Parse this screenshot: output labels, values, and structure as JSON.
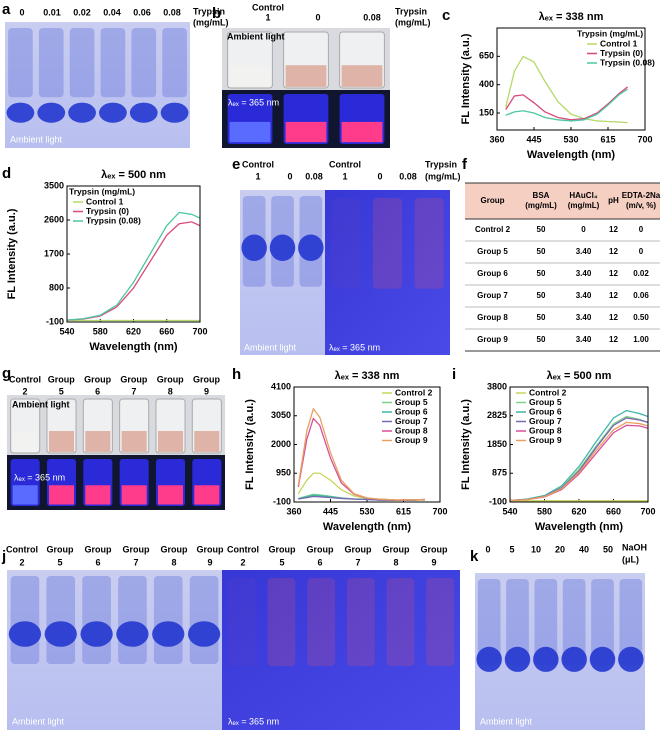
{
  "panels": {
    "a": {
      "label": "a",
      "lanes": [
        "0",
        "0.01",
        "0.02",
        "0.04",
        "0.06",
        "0.08"
      ],
      "unit": [
        "Trypsin",
        "(mg/mL)"
      ],
      "light": "Ambient light"
    },
    "b": {
      "label": "b",
      "vials": [
        [
          "Control",
          "1"
        ],
        [
          "0"
        ],
        [
          "0.08"
        ]
      ],
      "unit": [
        "Trypsin",
        "(mg/mL)"
      ],
      "light": "Ambient light",
      "uv": "λₑₓ = 365 nm"
    },
    "e": {
      "label": "e",
      "lanes": [
        [
          "Control",
          "1"
        ],
        [
          "0"
        ],
        [
          "0.08"
        ],
        [
          "Control",
          "1"
        ],
        [
          "0"
        ],
        [
          "0.08"
        ]
      ],
      "unit": [
        "Trypsin",
        "(mg/mL)"
      ],
      "light": "Ambient light",
      "uv": "λₑₓ = 365 nm"
    },
    "f": {
      "label": "f"
    },
    "g": {
      "label": "g",
      "vials": [
        [
          "Control",
          "2"
        ],
        [
          "Group",
          "5"
        ],
        [
          "Group",
          "6"
        ],
        [
          "Group",
          "7"
        ],
        [
          "Group",
          "8"
        ],
        [
          "Group",
          "9"
        ]
      ],
      "light": "Ambient light",
      "uv": "λₑₓ = 365 nm"
    },
    "j": {
      "label": "j",
      "lanes": [
        [
          "Control",
          "2"
        ],
        [
          "Group",
          "5"
        ],
        [
          "Group",
          "6"
        ],
        [
          "Group",
          "7"
        ],
        [
          "Group",
          "8"
        ],
        [
          "Group",
          "9"
        ],
        [
          "Control",
          "2"
        ],
        [
          "Group",
          "5"
        ],
        [
          "Group",
          "6"
        ],
        [
          "Group",
          "7"
        ],
        [
          "Group",
          "8"
        ],
        [
          "Group",
          "9"
        ]
      ],
      "light": "Ambient light",
      "uv": "λₑₓ = 365 nm"
    },
    "k": {
      "label": "k",
      "lanes": [
        "0",
        "5",
        "10",
        "20",
        "40",
        "50"
      ],
      "unit": [
        "NaOH",
        "(μL)"
      ],
      "light": "Ambient light"
    }
  },
  "table": {
    "header": [
      "Group",
      "BSA (mg/mL)",
      "HAuCl₄ (mg/mL)",
      "pH",
      "EDTA-2Na (m/v, %)"
    ],
    "rows": [
      [
        "Control 2",
        "50",
        "0",
        "12",
        "0"
      ],
      [
        "Group 5",
        "50",
        "3.40",
        "12",
        "0"
      ],
      [
        "Group 6",
        "50",
        "3.40",
        "12",
        "0.02"
      ],
      [
        "Group 7",
        "50",
        "3.40",
        "12",
        "0.06"
      ],
      [
        "Group 8",
        "50",
        "3.40",
        "12",
        "0.50"
      ],
      [
        "Group 9",
        "50",
        "3.40",
        "12",
        "1.00"
      ]
    ]
  },
  "chart_data": [
    {
      "type": "line",
      "panel_label": "c",
      "title": "λₑₓ = 338 nm",
      "x_label": "Wavelength (nm)",
      "y_label": "FL Intensity (a.u.)",
      "xlim": [
        360,
        700
      ],
      "xticks": [
        360,
        445,
        530,
        615,
        700
      ],
      "ylim": [
        0,
        900
      ],
      "yticks": [
        150,
        400,
        650
      ],
      "legend_title": "Trypsin (mg/mL)",
      "legend": "upper right",
      "x": [
        380,
        400,
        420,
        445,
        470,
        500,
        530,
        560,
        590,
        615,
        640,
        660
      ],
      "series": [
        {
          "name": "Control 1",
          "color": "#b5d96a",
          "values": [
            200,
            520,
            650,
            600,
            430,
            250,
            140,
            100,
            80,
            75,
            70,
            65
          ]
        },
        {
          "name": "Trypsin (0)",
          "color": "#d9497a",
          "values": [
            180,
            300,
            310,
            240,
            160,
            110,
            90,
            100,
            150,
            230,
            320,
            380
          ]
        },
        {
          "name": "Trypsin (0.08)",
          "color": "#4cc7a4",
          "values": [
            130,
            160,
            170,
            150,
            110,
            90,
            80,
            90,
            140,
            220,
            310,
            360
          ]
        }
      ]
    },
    {
      "type": "line",
      "panel_label": "d",
      "title": "λₑₓ = 500 nm",
      "x_label": "Wavelength (nm)",
      "y_label": "FL Intensity (a.u.)",
      "xlim": [
        540,
        700
      ],
      "xticks": [
        540,
        580,
        620,
        660,
        700
      ],
      "ylim": [
        -100,
        3500
      ],
      "yticks": [
        -100,
        800,
        1700,
        2600,
        3500
      ],
      "legend_title": "Trypsin (mg/mL)",
      "legend": "upper left",
      "x": [
        540,
        560,
        580,
        600,
        620,
        640,
        660,
        675,
        690,
        700
      ],
      "series": [
        {
          "name": "Control 1",
          "color": "#b5d96a",
          "values": [
            -60,
            -60,
            -60,
            -60,
            -60,
            -60,
            -60,
            -60,
            -60,
            -60
          ]
        },
        {
          "name": "Trypsin (0)",
          "color": "#d9497a",
          "values": [
            -50,
            -20,
            60,
            300,
            800,
            1500,
            2200,
            2500,
            2550,
            2450
          ]
        },
        {
          "name": "Trypsin (0.08)",
          "color": "#4cc7a4",
          "values": [
            -50,
            -10,
            80,
            350,
            950,
            1700,
            2450,
            2800,
            2750,
            2650
          ]
        }
      ]
    },
    {
      "type": "line",
      "panel_label": "h",
      "title": "λₑₓ = 338 nm",
      "x_label": "Wavelength (nm)",
      "y_label": "FL Intensity (a.u.)",
      "xlim": [
        360,
        700
      ],
      "xticks": [
        360,
        445,
        530,
        615,
        700
      ],
      "ylim": [
        -100,
        4100
      ],
      "yticks": [
        -100,
        950,
        2000,
        3050,
        4100
      ],
      "legend": "upper right",
      "x": [
        370,
        390,
        405,
        420,
        445,
        470,
        500,
        530,
        560,
        600,
        640,
        665
      ],
      "series": [
        {
          "name": "Control 2",
          "color": "#c9d45a",
          "values": [
            200,
            700,
            950,
            950,
            700,
            350,
            120,
            30,
            0,
            -30,
            -30,
            -30
          ]
        },
        {
          "name": "Group 5",
          "color": "#7fd08a",
          "values": [
            30,
            120,
            180,
            160,
            110,
            50,
            15,
            0,
            -30,
            -40,
            -30,
            -10
          ]
        },
        {
          "name": "Group 6",
          "color": "#3fb7a8",
          "values": [
            20,
            90,
            140,
            130,
            90,
            40,
            10,
            -5,
            -30,
            -40,
            -30,
            -10
          ]
        },
        {
          "name": "Group 7",
          "color": "#7a68b0",
          "values": [
            10,
            60,
            100,
            90,
            60,
            30,
            5,
            -10,
            -30,
            -40,
            -30,
            -10
          ]
        },
        {
          "name": "Group 8",
          "color": "#d94f9a",
          "values": [
            450,
            2200,
            2950,
            2700,
            1500,
            600,
            180,
            40,
            0,
            -30,
            -20,
            -10
          ]
        },
        {
          "name": "Group 9",
          "color": "#e8a060",
          "values": [
            500,
            2500,
            3300,
            3000,
            1700,
            700,
            200,
            50,
            0,
            -30,
            -20,
            -10
          ]
        }
      ]
    },
    {
      "type": "line",
      "panel_label": "i",
      "title": "λₑₓ = 500 nm",
      "x_label": "Wavelength (nm)",
      "y_label": "FL Intensity (a.u.)",
      "xlim": [
        540,
        700
      ],
      "xticks": [
        540,
        580,
        620,
        660,
        700
      ],
      "ylim": [
        -100,
        3800
      ],
      "yticks": [
        -100,
        875,
        1850,
        2825,
        3800
      ],
      "legend": "upper left",
      "x": [
        540,
        560,
        580,
        600,
        620,
        640,
        660,
        675,
        690,
        700
      ],
      "series": [
        {
          "name": "Control 2",
          "color": "#c9d45a",
          "values": [
            -60,
            -60,
            -60,
            -60,
            -60,
            -60,
            -60,
            -60,
            -60,
            -60
          ]
        },
        {
          "name": "Group 5",
          "color": "#7fd08a",
          "values": [
            -50,
            -10,
            100,
            400,
            1000,
            1800,
            2550,
            2800,
            2700,
            2600
          ]
        },
        {
          "name": "Group 6",
          "color": "#3fb7a8",
          "values": [
            -50,
            0,
            120,
            450,
            1100,
            1950,
            2750,
            3000,
            2900,
            2800
          ]
        },
        {
          "name": "Group 7",
          "color": "#7a68b0",
          "values": [
            -50,
            -10,
            90,
            380,
            950,
            1750,
            2500,
            2750,
            2680,
            2600
          ]
        },
        {
          "name": "Group 8",
          "color": "#d94f9a",
          "values": [
            -50,
            -20,
            70,
            320,
            850,
            1550,
            2250,
            2500,
            2480,
            2400
          ]
        },
        {
          "name": "Group 9",
          "color": "#e8a060",
          "values": [
            -50,
            -20,
            80,
            350,
            900,
            1650,
            2350,
            2600,
            2560,
            2480
          ]
        }
      ]
    }
  ]
}
